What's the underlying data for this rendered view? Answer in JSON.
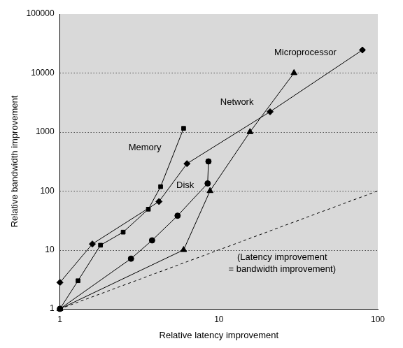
{
  "chart_data": {
    "type": "line",
    "x_label": "Relative latency improvement",
    "y_label": "Relative bandwidth improvement",
    "log": true,
    "grid": "y",
    "xlim": [
      1,
      100
    ],
    "ylim": [
      1,
      100000
    ],
    "xticks": [
      1,
      10,
      100
    ],
    "yticks": [
      1,
      10,
      100,
      1000,
      10000,
      100000
    ],
    "series": [
      {
        "name": "Microprocessor",
        "color": "#000000",
        "marker": "triangle",
        "line_style": "solid",
        "x": [
          1,
          6,
          8.8,
          15.7,
          29.7
        ],
        "values": [
          1,
          10,
          100,
          1000,
          10000
        ]
      },
      {
        "name": "Network",
        "color": "#000000",
        "marker": "diamond",
        "line_style": "solid",
        "x": [
          1,
          1.6,
          4.2,
          6.3,
          21,
          80
        ],
        "values": [
          2.8,
          12.6,
          66,
          290,
          2200,
          24500
        ]
      },
      {
        "name": "Memory",
        "color": "#000000",
        "marker": "square",
        "line_style": "solid",
        "x": [
          1,
          1.3,
          1.8,
          2.5,
          3.6,
          4.3,
          6
        ],
        "values": [
          1,
          3,
          12,
          20,
          49,
          118,
          1150
        ]
      },
      {
        "name": "Disk",
        "color": "#000000",
        "marker": "circle",
        "line_style": "solid",
        "x": [
          1,
          2.8,
          3.8,
          5.5,
          8.5,
          8.6
        ],
        "values": [
          1,
          7.1,
          14.5,
          38,
          134,
          316
        ]
      },
      {
        "name": "(Latency improvement\n= bandwidth improvement)",
        "color": "#000000",
        "marker": "none",
        "line_style": "dashed",
        "x": [
          1,
          100
        ],
        "values": [
          1,
          100
        ]
      }
    ]
  }
}
